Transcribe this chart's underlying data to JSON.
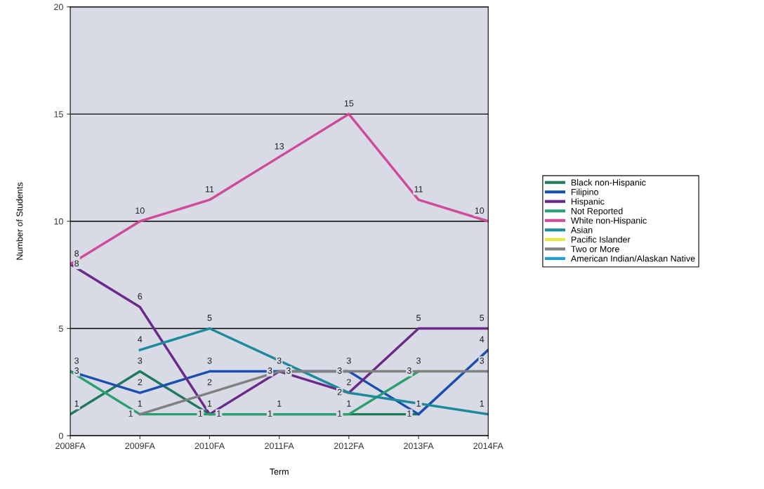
{
  "chart_data": {
    "type": "line",
    "xlabel": "Term",
    "ylabel": "Number of Students",
    "categories": [
      "2008FA",
      "2009FA",
      "2010FA",
      "2011FA",
      "2012FA",
      "2013FA",
      "2014FA"
    ],
    "series": [
      {
        "name": "Black non-Hispanic",
        "color": "#1f7a5c",
        "values": [
          1,
          3,
          1,
          1,
          1,
          1,
          null
        ]
      },
      {
        "name": "Filipino",
        "color": "#1a4fb0",
        "values": [
          3,
          2,
          3,
          3,
          3,
          1,
          4
        ]
      },
      {
        "name": "Hispanic",
        "color": "#6a2a8a",
        "values": [
          8,
          6,
          1,
          3,
          2,
          5,
          5
        ]
      },
      {
        "name": "Not Reported",
        "color": "#2aa070",
        "values": [
          3,
          1,
          1,
          1,
          1,
          3,
          null
        ]
      },
      {
        "name": "White non-Hispanic",
        "color": "#d04a9a",
        "values": [
          8,
          10,
          11,
          13,
          15,
          11,
          10
        ]
      },
      {
        "name": "Asian",
        "color": "#1b8a9a",
        "values": [
          null,
          4,
          5,
          null,
          2,
          null,
          1
        ]
      },
      {
        "name": "Pacific Islander",
        "color": "#e8e840",
        "values": [
          null,
          null,
          null,
          null,
          null,
          null,
          null
        ]
      },
      {
        "name": "Two or More",
        "color": "#808080",
        "values": [
          null,
          1,
          2,
          3,
          3,
          3,
          3
        ]
      },
      {
        "name": "American Indian/Alaskan Native",
        "color": "#20a0d0",
        "values": [
          null,
          null,
          null,
          null,
          null,
          null,
          null
        ]
      }
    ],
    "ylim": [
      0,
      20
    ],
    "yticks": [
      0,
      5,
      10,
      15,
      20
    ],
    "grid": "y",
    "legend": "right",
    "data_labels": true,
    "marker": "none",
    "line_style": "solid"
  }
}
